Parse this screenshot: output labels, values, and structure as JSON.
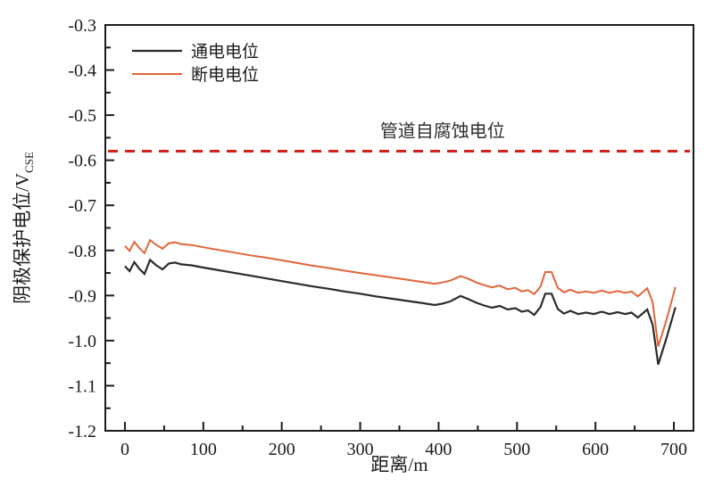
{
  "colors": {
    "frame": "#1c1c1c",
    "background": "#ffffff",
    "on_potential_line": "#2b2b2b",
    "off_potential_line": "#e2653a",
    "reference_line": "#d6201a",
    "text": "#1b1b1b"
  },
  "chart_data": {
    "type": "line",
    "title": "",
    "xlabel": "距离/m",
    "ylabel": "阴极保护电位/V",
    "ylabel_sub": "CSE",
    "xlim": [
      -25,
      725
    ],
    "ylim": [
      -1.2,
      -0.3
    ],
    "grid": false,
    "legend_position": "top-left",
    "x_major_ticks": [
      0,
      100,
      200,
      300,
      400,
      500,
      600,
      700
    ],
    "x_minor_ticks": [
      50,
      150,
      250,
      350,
      450,
      550,
      650
    ],
    "y_major_ticks": [
      -0.3,
      -0.4,
      -0.5,
      -0.6,
      -0.7,
      -0.8,
      -0.9,
      -1.0,
      -1.1,
      -1.2
    ],
    "y_minor_ticks": [
      -0.35,
      -0.45,
      -0.55,
      -0.65,
      -0.75,
      -0.85,
      -0.95,
      -1.05,
      -1.15
    ],
    "reference_line": {
      "label": "管道自腐蚀电位",
      "y": -0.58,
      "label_x": 405,
      "color": "#d6201a",
      "style": "dashed"
    },
    "x": [
      0,
      6,
      12,
      18,
      25,
      32,
      40,
      48,
      56,
      64,
      72,
      85,
      100,
      120,
      140,
      160,
      180,
      200,
      220,
      240,
      260,
      280,
      300,
      320,
      340,
      360,
      380,
      395,
      405,
      415,
      428,
      438,
      448,
      458,
      468,
      478,
      488,
      498,
      506,
      514,
      522,
      530,
      536,
      544,
      552,
      560,
      568,
      578,
      588,
      598,
      608,
      618,
      628,
      638,
      646,
      654,
      660,
      666,
      673,
      680,
      690,
      696,
      702
    ],
    "series": [
      {
        "key": "on-potential",
        "name": "通电电位",
        "color": "#2b2b2b",
        "width": 2.2,
        "values": [
          -0.835,
          -0.846,
          -0.826,
          -0.84,
          -0.852,
          -0.821,
          -0.833,
          -0.842,
          -0.829,
          -0.827,
          -0.831,
          -0.833,
          -0.838,
          -0.844,
          -0.85,
          -0.856,
          -0.862,
          -0.868,
          -0.874,
          -0.88,
          -0.885,
          -0.891,
          -0.896,
          -0.902,
          -0.907,
          -0.912,
          -0.917,
          -0.921,
          -0.918,
          -0.913,
          -0.901,
          -0.908,
          -0.916,
          -0.922,
          -0.927,
          -0.923,
          -0.931,
          -0.928,
          -0.936,
          -0.933,
          -0.943,
          -0.925,
          -0.896,
          -0.896,
          -0.93,
          -0.94,
          -0.934,
          -0.941,
          -0.938,
          -0.941,
          -0.936,
          -0.941,
          -0.937,
          -0.941,
          -0.938,
          -0.949,
          -0.94,
          -0.931,
          -0.965,
          -1.053,
          -0.998,
          -0.962,
          -0.926
        ]
      },
      {
        "key": "off-potential",
        "name": "断电电位",
        "color": "#e2653a",
        "width": 2.0,
        "values": [
          -0.79,
          -0.801,
          -0.781,
          -0.794,
          -0.806,
          -0.777,
          -0.788,
          -0.796,
          -0.784,
          -0.782,
          -0.786,
          -0.788,
          -0.793,
          -0.799,
          -0.805,
          -0.811,
          -0.816,
          -0.822,
          -0.828,
          -0.834,
          -0.839,
          -0.845,
          -0.85,
          -0.855,
          -0.86,
          -0.865,
          -0.87,
          -0.874,
          -0.871,
          -0.867,
          -0.857,
          -0.863,
          -0.871,
          -0.877,
          -0.882,
          -0.878,
          -0.886,
          -0.883,
          -0.891,
          -0.888,
          -0.897,
          -0.88,
          -0.848,
          -0.848,
          -0.883,
          -0.893,
          -0.887,
          -0.894,
          -0.891,
          -0.894,
          -0.889,
          -0.894,
          -0.89,
          -0.894,
          -0.891,
          -0.902,
          -0.893,
          -0.884,
          -0.915,
          -1.013,
          -0.958,
          -0.92,
          -0.881
        ]
      }
    ]
  }
}
